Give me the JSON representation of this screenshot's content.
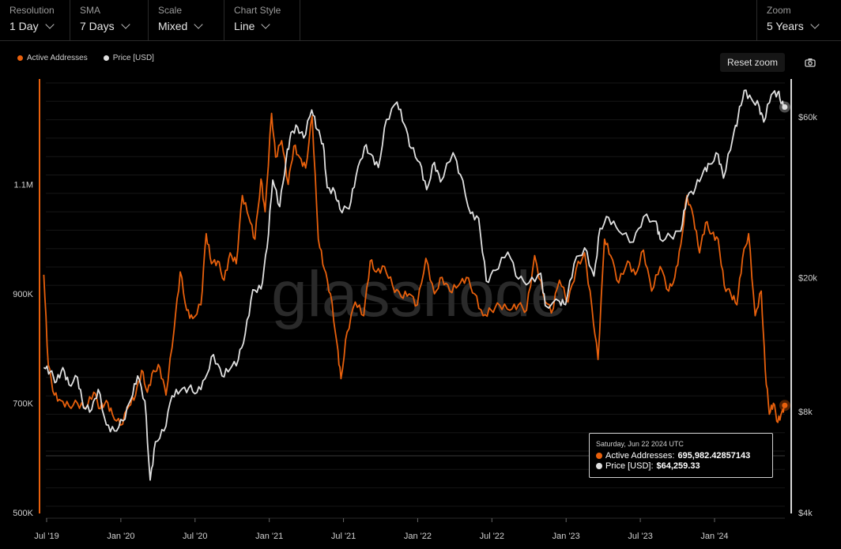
{
  "toolbar": {
    "resolution": {
      "label": "Resolution",
      "value": "1 Day"
    },
    "sma": {
      "label": "SMA",
      "value": "7 Days"
    },
    "scale": {
      "label": "Scale",
      "value": "Mixed"
    },
    "chart_style": {
      "label": "Chart Style",
      "value": "Line"
    },
    "zoom": {
      "label": "Zoom",
      "value": "5 Years"
    }
  },
  "reset_zoom_label": "Reset zoom",
  "watermark": "glassnode",
  "colors": {
    "active": "#e8600c",
    "price": "#e0e0e0",
    "axis_left": "#e8600c",
    "grid": "#1f1f1f"
  },
  "tooltip": {
    "date": "Saturday, Jun 22 2024 UTC",
    "active_label": "Active Addresses:",
    "active_value": "695,982.42857143",
    "price_label": "Price [USD]:",
    "price_value": "$64,259.33"
  },
  "chart_data": {
    "type": "line",
    "title": "",
    "x_ticks": [
      "Jul '19",
      "Jan '20",
      "Jul '20",
      "Jan '21",
      "Jul '21",
      "Jan '22",
      "Jul '22",
      "Jan '23",
      "Jul '23",
      "Jan '24"
    ],
    "left_axis": {
      "scale": "linear",
      "ticks": [
        500000,
        700000,
        900000,
        1100000
      ],
      "tick_labels": [
        "500K",
        "700K",
        "900K",
        "1.1M"
      ],
      "range": [
        500000,
        1300000
      ]
    },
    "right_axis": {
      "scale": "log",
      "ticks": [
        4000,
        8000,
        20000,
        60000
      ],
      "tick_labels": [
        "$4k",
        "$8k",
        "$20k",
        "$60k"
      ],
      "range": [
        4000,
        80000
      ]
    },
    "legend_position": "top-left",
    "series": [
      {
        "name": "Active Addresses",
        "axis": "left",
        "points": [
          [
            "2019-06-24",
            935000
          ],
          [
            "2019-07-05",
            770000
          ],
          [
            "2019-07-20",
            715000
          ],
          [
            "2019-08-05",
            705000
          ],
          [
            "2019-08-25",
            695000
          ],
          [
            "2019-09-15",
            700000
          ],
          [
            "2019-10-05",
            690000
          ],
          [
            "2019-10-25",
            720000
          ],
          [
            "2019-11-10",
            690000
          ],
          [
            "2019-11-25",
            705000
          ],
          [
            "2019-12-10",
            680000
          ],
          [
            "2019-12-30",
            660000
          ],
          [
            "2020-01-20",
            695000
          ],
          [
            "2020-02-05",
            715000
          ],
          [
            "2020-02-20",
            760000
          ],
          [
            "2020-03-05",
            720000
          ],
          [
            "2020-03-20",
            760000
          ],
          [
            "2020-04-05",
            765000
          ],
          [
            "2020-04-20",
            715000
          ],
          [
            "2020-05-10",
            835000
          ],
          [
            "2020-05-25",
            940000
          ],
          [
            "2020-06-10",
            870000
          ],
          [
            "2020-06-25",
            855000
          ],
          [
            "2020-07-15",
            880000
          ],
          [
            "2020-07-28",
            1010000
          ],
          [
            "2020-08-10",
            955000
          ],
          [
            "2020-08-25",
            960000
          ],
          [
            "2020-09-10",
            925000
          ],
          [
            "2020-09-25",
            975000
          ],
          [
            "2020-10-10",
            955000
          ],
          [
            "2020-10-25",
            1080000
          ],
          [
            "2020-11-10",
            1040000
          ],
          [
            "2020-11-25",
            1000000
          ],
          [
            "2020-12-10",
            1110000
          ],
          [
            "2020-12-20",
            1050000
          ],
          [
            "2021-01-05",
            1230000
          ],
          [
            "2021-01-15",
            1150000
          ],
          [
            "2021-01-30",
            1180000
          ],
          [
            "2021-02-15",
            1100000
          ],
          [
            "2021-03-01",
            1170000
          ],
          [
            "2021-03-15",
            1150000
          ],
          [
            "2021-03-30",
            1130000
          ],
          [
            "2021-04-15",
            1225000
          ],
          [
            "2021-04-30",
            1000000
          ],
          [
            "2021-05-15",
            945000
          ],
          [
            "2021-05-30",
            900000
          ],
          [
            "2021-06-15",
            810000
          ],
          [
            "2021-06-25",
            745000
          ],
          [
            "2021-07-10",
            830000
          ],
          [
            "2021-07-30",
            885000
          ],
          [
            "2021-08-20",
            860000
          ],
          [
            "2021-09-05",
            960000
          ],
          [
            "2021-09-20",
            940000
          ],
          [
            "2021-10-10",
            950000
          ],
          [
            "2021-10-30",
            915000
          ],
          [
            "2021-11-20",
            895000
          ],
          [
            "2021-12-10",
            900000
          ],
          [
            "2021-12-30",
            880000
          ],
          [
            "2022-01-20",
            965000
          ],
          [
            "2022-02-10",
            900000
          ],
          [
            "2022-03-01",
            930000
          ],
          [
            "2022-03-20",
            905000
          ],
          [
            "2022-04-10",
            915000
          ],
          [
            "2022-04-30",
            930000
          ],
          [
            "2022-05-20",
            900000
          ],
          [
            "2022-06-10",
            860000
          ],
          [
            "2022-06-30",
            870000
          ],
          [
            "2022-07-20",
            880000
          ],
          [
            "2022-08-15",
            870000
          ],
          [
            "2022-09-05",
            880000
          ],
          [
            "2022-09-25",
            870000
          ],
          [
            "2022-10-15",
            970000
          ],
          [
            "2022-11-05",
            900000
          ],
          [
            "2022-11-25",
            865000
          ],
          [
            "2022-12-15",
            925000
          ],
          [
            "2023-01-05",
            885000
          ],
          [
            "2023-01-25",
            945000
          ],
          [
            "2023-02-15",
            975000
          ],
          [
            "2023-03-05",
            875000
          ],
          [
            "2023-03-20",
            780000
          ],
          [
            "2023-04-05",
            1000000
          ],
          [
            "2023-04-20",
            970000
          ],
          [
            "2023-05-10",
            920000
          ],
          [
            "2023-06-01",
            960000
          ],
          [
            "2023-06-20",
            935000
          ],
          [
            "2023-07-10",
            980000
          ],
          [
            "2023-07-30",
            905000
          ],
          [
            "2023-08-20",
            950000
          ],
          [
            "2023-09-10",
            905000
          ],
          [
            "2023-09-25",
            930000
          ],
          [
            "2023-10-10",
            990000
          ],
          [
            "2023-10-25",
            1080000
          ],
          [
            "2023-11-10",
            1040000
          ],
          [
            "2023-11-25",
            975000
          ],
          [
            "2023-12-10",
            1030000
          ],
          [
            "2023-12-25",
            1010000
          ],
          [
            "2024-01-10",
            1000000
          ],
          [
            "2024-01-25",
            915000
          ],
          [
            "2024-02-10",
            900000
          ],
          [
            "2024-02-25",
            880000
          ],
          [
            "2024-03-10",
            965000
          ],
          [
            "2024-03-25",
            1010000
          ],
          [
            "2024-04-10",
            860000
          ],
          [
            "2024-04-25",
            905000
          ],
          [
            "2024-05-05",
            760000
          ],
          [
            "2024-05-15",
            680000
          ],
          [
            "2024-05-25",
            700000
          ],
          [
            "2024-06-05",
            665000
          ],
          [
            "2024-06-15",
            685000
          ],
          [
            "2024-06-22",
            695982
          ]
        ]
      },
      {
        "name": "Price [USD]",
        "axis": "right",
        "points": [
          [
            "2019-06-24",
            10800
          ],
          [
            "2019-07-10",
            10500
          ],
          [
            "2019-07-25",
            9800
          ],
          [
            "2019-08-10",
            10800
          ],
          [
            "2019-08-25",
            9600
          ],
          [
            "2019-09-15",
            10100
          ],
          [
            "2019-09-30",
            8200
          ],
          [
            "2019-10-20",
            8100
          ],
          [
            "2019-11-05",
            9300
          ],
          [
            "2019-11-25",
            7300
          ],
          [
            "2019-12-15",
            7000
          ],
          [
            "2020-01-05",
            7500
          ],
          [
            "2020-01-25",
            8700
          ],
          [
            "2020-02-10",
            10200
          ],
          [
            "2020-02-28",
            8600
          ],
          [
            "2020-03-12",
            5000
          ],
          [
            "2020-03-25",
            6500
          ],
          [
            "2020-04-15",
            7000
          ],
          [
            "2020-05-05",
            8900
          ],
          [
            "2020-05-25",
            9200
          ],
          [
            "2020-06-15",
            9400
          ],
          [
            "2020-07-05",
            9100
          ],
          [
            "2020-07-25",
            10000
          ],
          [
            "2020-08-15",
            11800
          ],
          [
            "2020-09-05",
            10200
          ],
          [
            "2020-09-25",
            10700
          ],
          [
            "2020-10-15",
            11400
          ],
          [
            "2020-11-01",
            13600
          ],
          [
            "2020-11-20",
            18400
          ],
          [
            "2020-12-10",
            18500
          ],
          [
            "2020-12-25",
            24500
          ],
          [
            "2021-01-08",
            39000
          ],
          [
            "2021-01-25",
            32500
          ],
          [
            "2021-02-10",
            45000
          ],
          [
            "2021-02-22",
            54000
          ],
          [
            "2021-03-10",
            56000
          ],
          [
            "2021-03-25",
            52000
          ],
          [
            "2021-04-14",
            63000
          ],
          [
            "2021-04-28",
            55000
          ],
          [
            "2021-05-12",
            50000
          ],
          [
            "2021-05-22",
            37000
          ],
          [
            "2021-06-10",
            36000
          ],
          [
            "2021-06-22",
            32000
          ],
          [
            "2021-07-15",
            32000
          ],
          [
            "2021-08-01",
            40000
          ],
          [
            "2021-08-22",
            49000
          ],
          [
            "2021-09-07",
            46500
          ],
          [
            "2021-09-25",
            42500
          ],
          [
            "2021-10-15",
            59000
          ],
          [
            "2021-11-10",
            66500
          ],
          [
            "2021-11-28",
            57000
          ],
          [
            "2021-12-15",
            48500
          ],
          [
            "2022-01-05",
            44000
          ],
          [
            "2022-01-22",
            36500
          ],
          [
            "2022-02-10",
            44000
          ],
          [
            "2022-02-25",
            38500
          ],
          [
            "2022-03-28",
            47000
          ],
          [
            "2022-04-15",
            40500
          ],
          [
            "2022-05-10",
            31000
          ],
          [
            "2022-05-30",
            30000
          ],
          [
            "2022-06-18",
            19500
          ],
          [
            "2022-07-10",
            21000
          ],
          [
            "2022-08-10",
            23800
          ],
          [
            "2022-09-05",
            19800
          ],
          [
            "2022-10-01",
            19300
          ],
          [
            "2022-10-30",
            20600
          ],
          [
            "2022-11-10",
            16500
          ],
          [
            "2022-12-15",
            17000
          ],
          [
            "2022-12-30",
            16600
          ],
          [
            "2023-01-20",
            22000
          ],
          [
            "2023-02-15",
            24500
          ],
          [
            "2023-03-10",
            20200
          ],
          [
            "2023-03-25",
            28000
          ],
          [
            "2023-04-15",
            30200
          ],
          [
            "2023-05-10",
            27500
          ],
          [
            "2023-06-15",
            25500
          ],
          [
            "2023-07-10",
            30300
          ],
          [
            "2023-08-10",
            29400
          ],
          [
            "2023-08-20",
            26000
          ],
          [
            "2023-09-15",
            26500
          ],
          [
            "2023-10-10",
            27500
          ],
          [
            "2023-10-25",
            34500
          ],
          [
            "2023-11-15",
            37000
          ],
          [
            "2023-12-05",
            41500
          ],
          [
            "2023-12-20",
            43500
          ],
          [
            "2024-01-10",
            46500
          ],
          [
            "2024-01-23",
            39500
          ],
          [
            "2024-02-15",
            52000
          ],
          [
            "2024-02-28",
            60000
          ],
          [
            "2024-03-14",
            72000
          ],
          [
            "2024-04-01",
            68000
          ],
          [
            "2024-04-20",
            64500
          ],
          [
            "2024-05-01",
            58000
          ],
          [
            "2024-05-20",
            70000
          ],
          [
            "2024-06-05",
            71000
          ],
          [
            "2024-06-15",
            66000
          ],
          [
            "2024-06-22",
            64259
          ]
        ]
      }
    ]
  }
}
